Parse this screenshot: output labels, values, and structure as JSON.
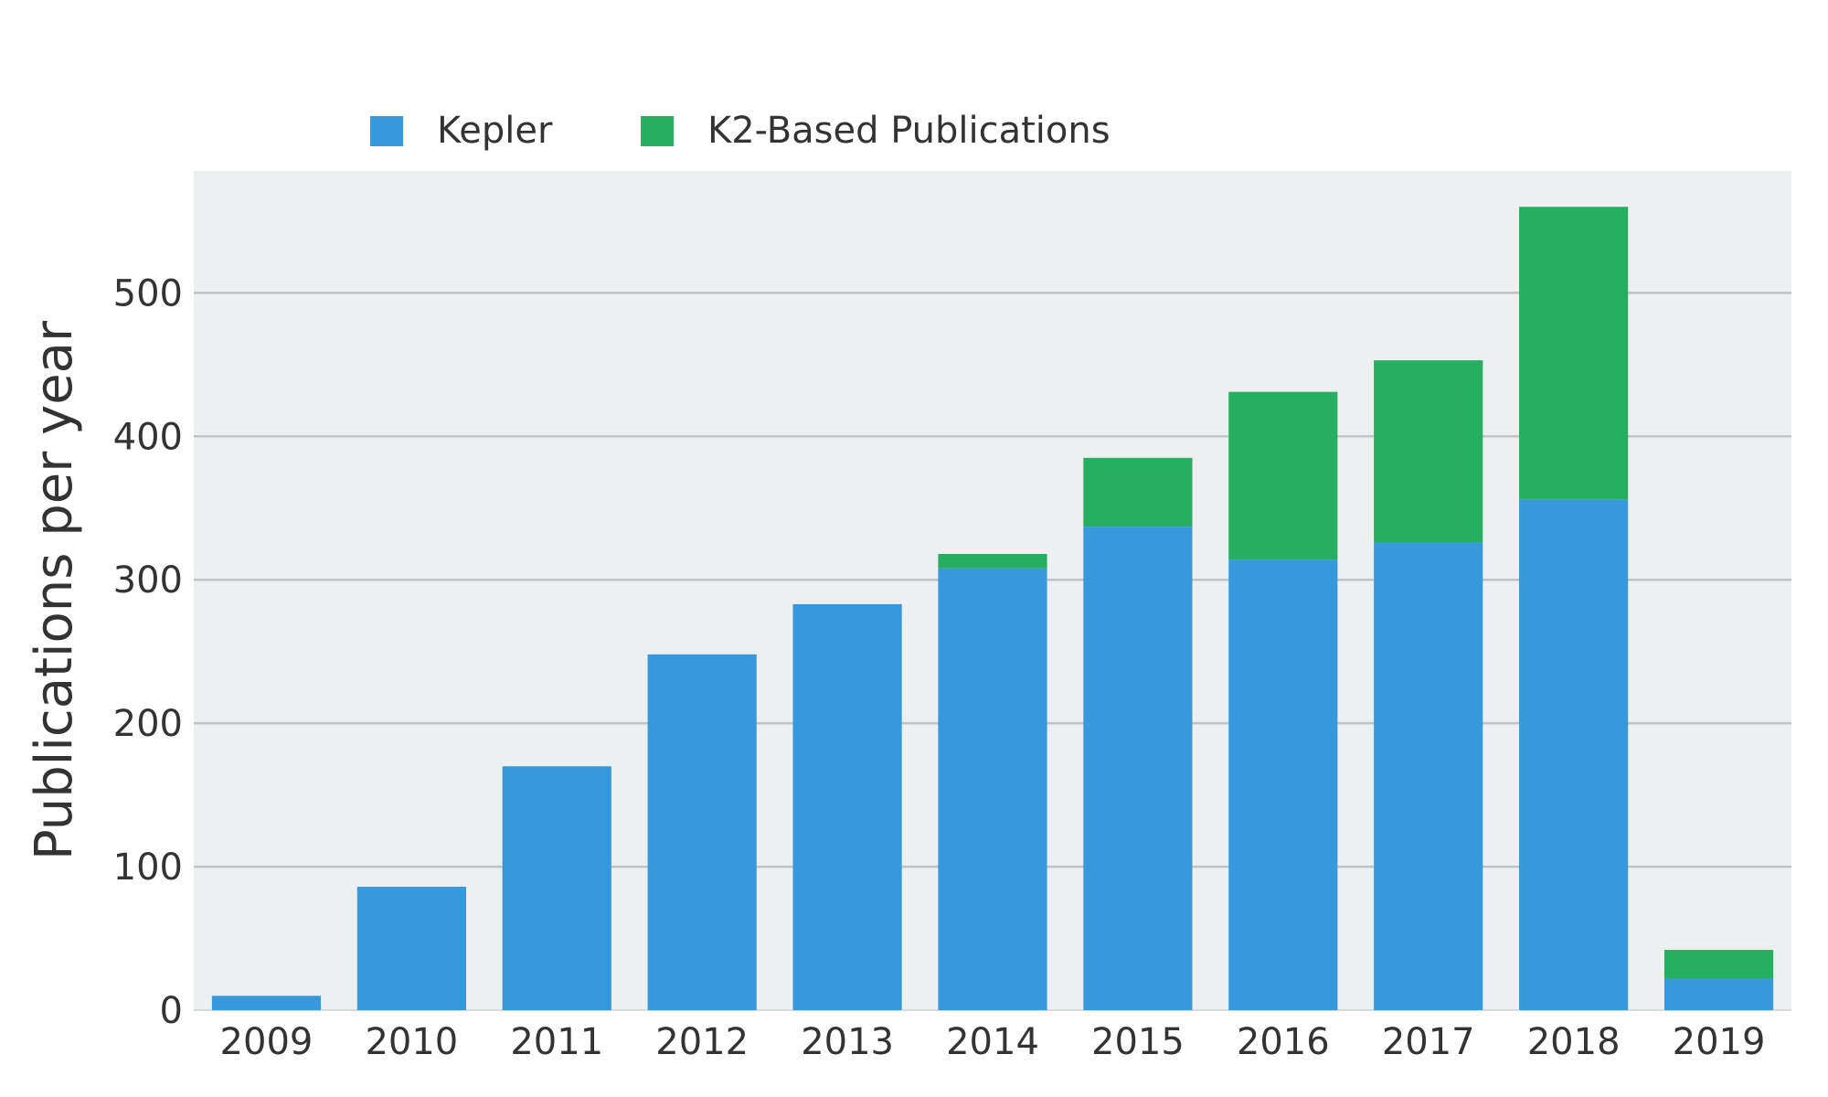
{
  "chart_data": {
    "type": "bar",
    "stacked": true,
    "categories": [
      "2009",
      "2010",
      "2011",
      "2012",
      "2013",
      "2014",
      "2015",
      "2016",
      "2017",
      "2018",
      "2019"
    ],
    "series": [
      {
        "name": "Kepler",
        "color": "#3798db",
        "values": [
          10,
          86,
          170,
          248,
          283,
          308,
          337,
          314,
          326,
          356,
          22
        ]
      },
      {
        "name": "K2-Based Publications",
        "color": "#27ae60",
        "values": [
          0,
          0,
          0,
          0,
          0,
          10,
          48,
          117,
          127,
          204,
          20
        ]
      }
    ],
    "title": "",
    "xlabel": "",
    "ylabel": "Publications per year",
    "ylim": [
      0,
      585
    ],
    "yticks": [
      0,
      100,
      200,
      300,
      400,
      500
    ],
    "grid": true,
    "legend": "top-left",
    "plot_background": "#ecf0f1",
    "grid_color": "#bdc3c7"
  }
}
